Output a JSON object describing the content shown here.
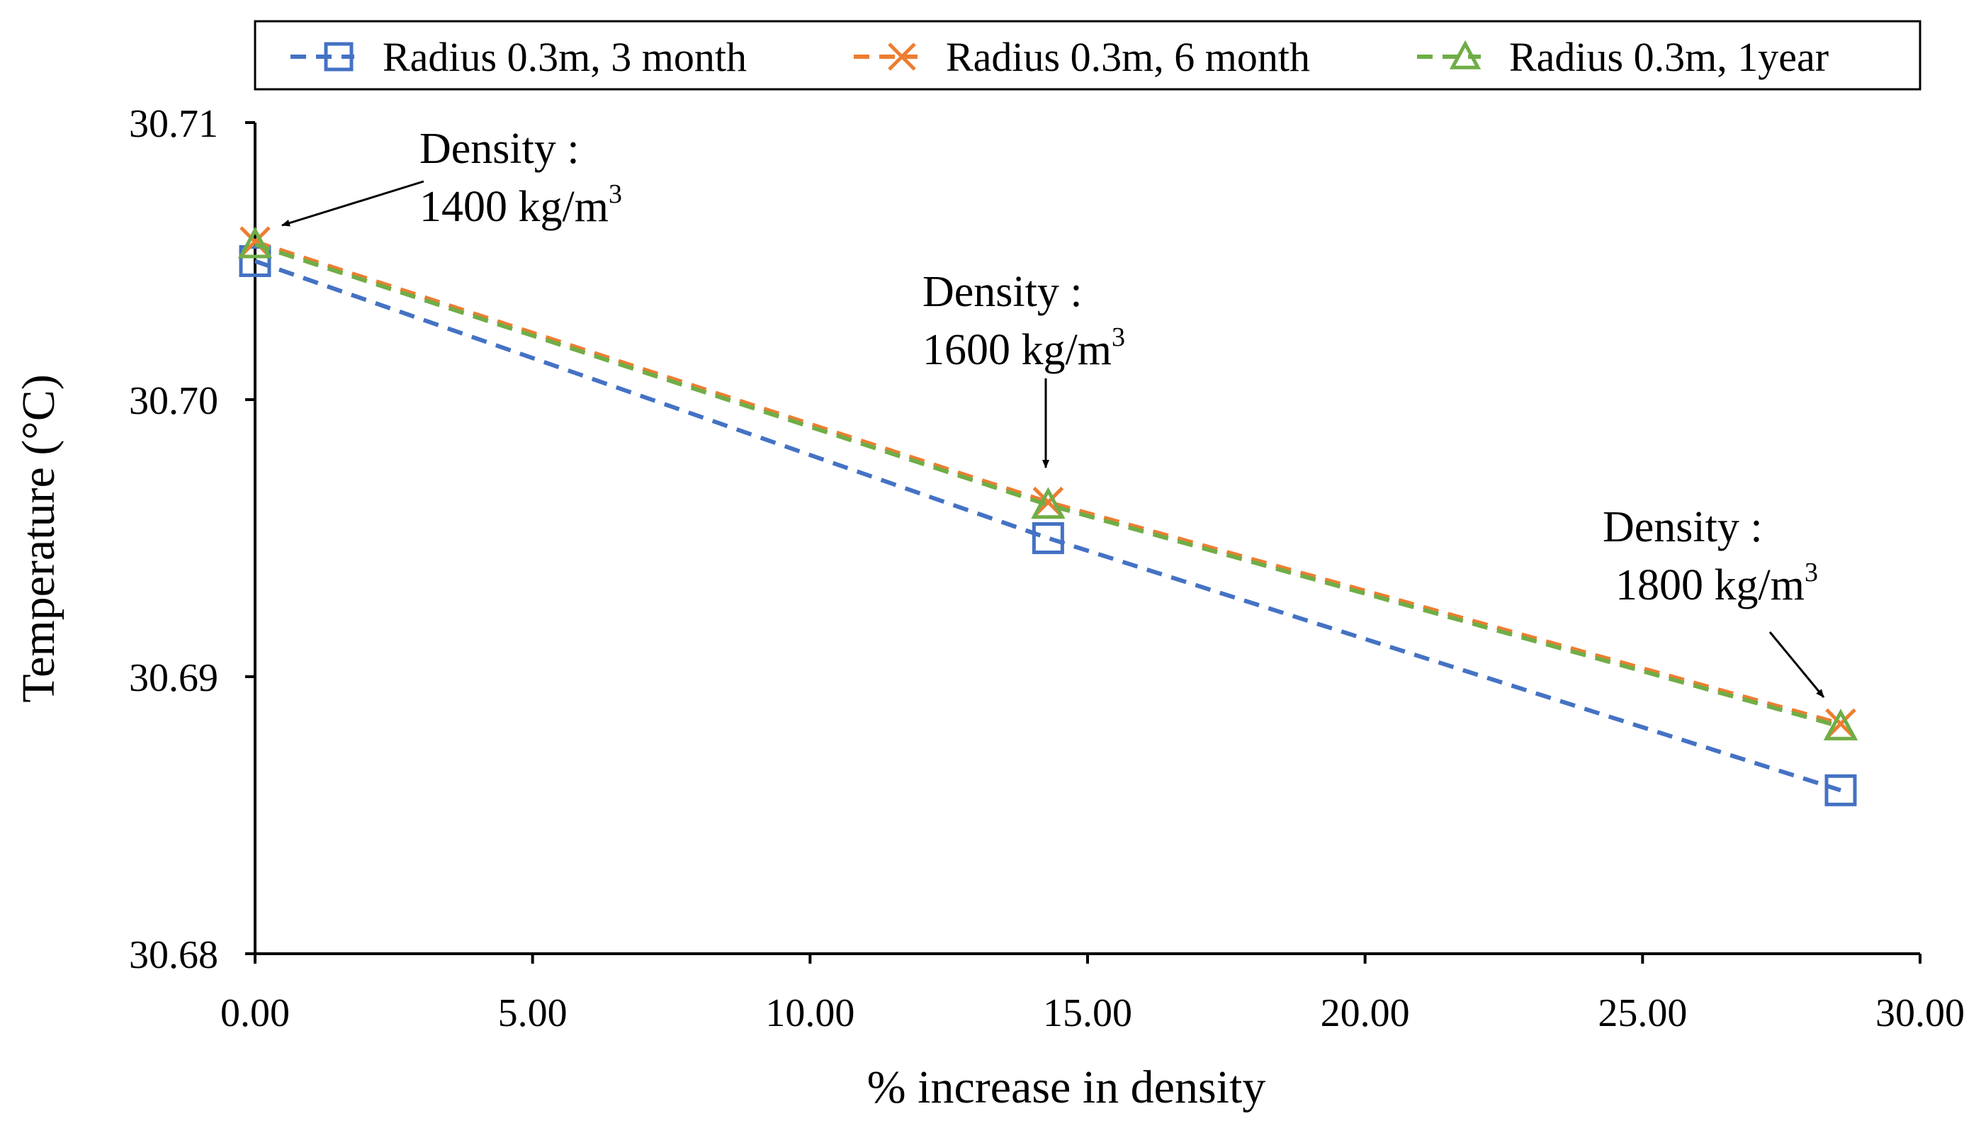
{
  "chart_data": {
    "type": "line",
    "title": "",
    "xlabel": "% increase in density",
    "ylabel": "Temperature (°C)",
    "xlim": [
      0,
      30
    ],
    "ylim": [
      30.68,
      30.71
    ],
    "x_ticks": [
      "0.00",
      "5.00",
      "10.00",
      "15.00",
      "20.00",
      "25.00",
      "30.00"
    ],
    "y_ticks": [
      "30.68",
      "30.69",
      "30.70",
      "30.71"
    ],
    "x": [
      0,
      14.29,
      28.57
    ],
    "series": [
      {
        "name": "Radius 0.3m, 3 month",
        "marker": "square",
        "color": "#4472C4",
        "values": [
          30.705,
          30.695,
          30.6859
        ]
      },
      {
        "name": "Radius 0.3m, 6 month",
        "marker": "x",
        "color": "#ED7D31",
        "values": [
          30.7057,
          30.6963,
          30.6883
        ]
      },
      {
        "name": "Radius 0.3m, 1year",
        "marker": "triangle",
        "color": "#70AD47",
        "values": [
          30.7056,
          30.6962,
          30.6882
        ]
      }
    ],
    "annotations": [
      {
        "label": "Density :",
        "value": "1400 kg/m",
        "sup": "3",
        "x": 0
      },
      {
        "label": "Density :",
        "value": "1600 kg/m",
        "sup": "3",
        "x": 14.29
      },
      {
        "label": "Density :",
        "value": "1800 kg/m",
        "sup": "3",
        "x": 28.57
      }
    ],
    "legend_position": "top",
    "grid": false
  }
}
